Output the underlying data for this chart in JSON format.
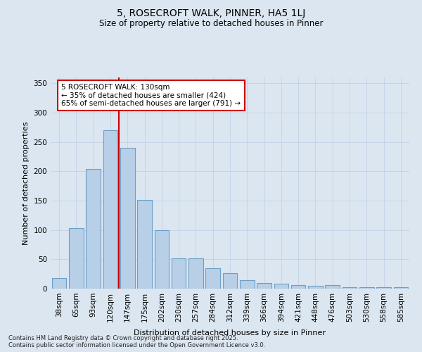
{
  "title": "5, ROSECROFT WALK, PINNER, HA5 1LJ",
  "subtitle": "Size of property relative to detached houses in Pinner",
  "xlabel": "Distribution of detached houses by size in Pinner",
  "ylabel": "Number of detached properties",
  "categories": [
    "38sqm",
    "65sqm",
    "93sqm",
    "120sqm",
    "147sqm",
    "175sqm",
    "202sqm",
    "230sqm",
    "257sqm",
    "284sqm",
    "312sqm",
    "339sqm",
    "366sqm",
    "394sqm",
    "421sqm",
    "448sqm",
    "476sqm",
    "503sqm",
    "530sqm",
    "558sqm",
    "585sqm"
  ],
  "values": [
    18,
    103,
    204,
    270,
    240,
    151,
    100,
    52,
    52,
    35,
    27,
    15,
    10,
    9,
    6,
    5,
    6,
    2,
    2,
    3,
    3
  ],
  "bar_color": "#b8cfe8",
  "bar_edge_color": "#6a9fc8",
  "grid_color": "#c8d4e8",
  "background_color": "#dce6f0",
  "vline_x": 3.5,
  "vline_color": "#cc0000",
  "annotation_text": "5 ROSECROFT WALK: 130sqm\n← 35% of detached houses are smaller (424)\n65% of semi-detached houses are larger (791) →",
  "annotation_box_color": "#ffffff",
  "annotation_box_edge": "#cc0000",
  "footer_text": "Contains HM Land Registry data © Crown copyright and database right 2025.\nContains public sector information licensed under the Open Government Licence v3.0.",
  "ylim": [
    0,
    360
  ],
  "yticks": [
    0,
    50,
    100,
    150,
    200,
    250,
    300,
    350
  ]
}
